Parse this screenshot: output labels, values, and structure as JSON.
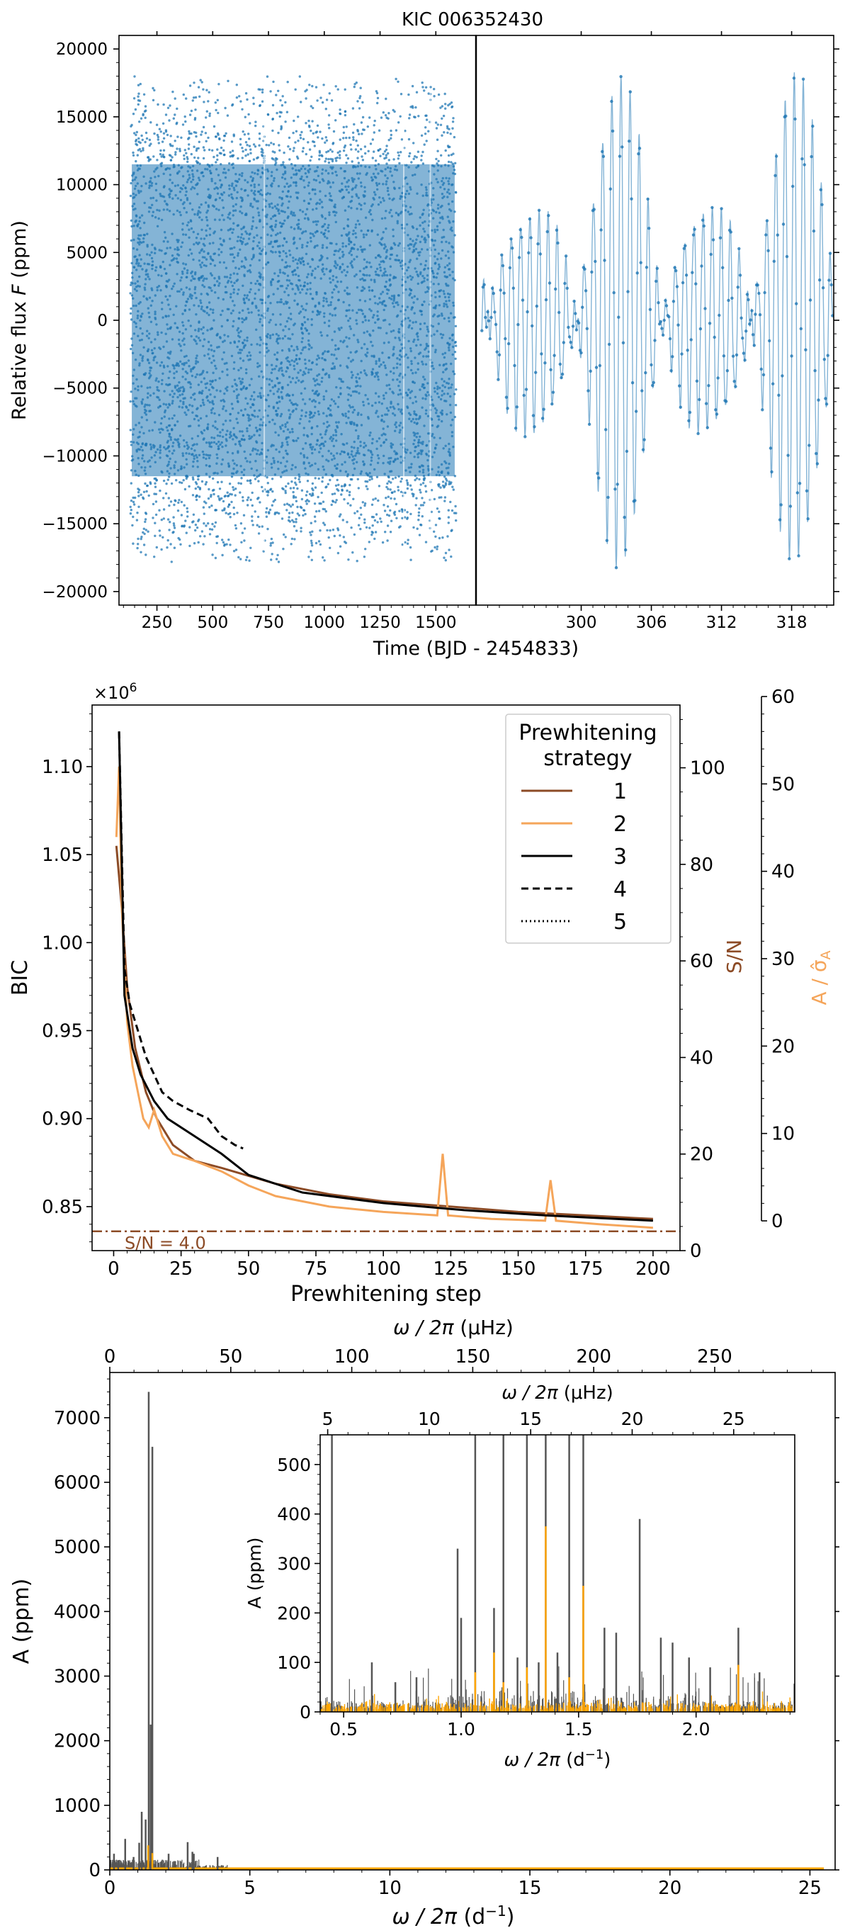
{
  "chart_data": [
    {
      "type": "scatter",
      "title": "KIC 006352430",
      "xlabel": "Time (BJD - 2454833)",
      "ylabel_prefix": "Relative flux",
      "ylabel_var": "F",
      "ylabel_unit": "(ppm)",
      "ylim": [
        -21000,
        21000
      ],
      "yticks": [
        -20000,
        -15000,
        -10000,
        -5000,
        0,
        5000,
        10000,
        15000,
        20000
      ],
      "left_panel": {
        "xlim": [
          80,
          1680
        ],
        "data_range": [
          131,
          1591
        ],
        "xticks": [
          250,
          500,
          750,
          1000,
          1250,
          1500
        ]
      },
      "right_panel": {
        "xlim": [
          291,
          321.6
        ],
        "xticks": [
          300,
          306,
          312,
          318
        ],
        "signal": {
          "t0": 291.5,
          "t1": 321.5,
          "carrier_period_d": 0.78,
          "beat_period_d": 7.5,
          "peak_amplitude": 18000
        }
      },
      "color": "#1f77b4"
    },
    {
      "type": "line",
      "xlabel": "Prewhitening step",
      "ylabel": "BIC",
      "offset_text": "×10",
      "offset_exp": "6",
      "xlim": [
        -8,
        210
      ],
      "xticks": [
        0,
        25,
        50,
        75,
        100,
        125,
        150,
        175,
        200
      ],
      "ylim": [
        0.825,
        1.135
      ],
      "yticks": [
        0.85,
        0.9,
        0.95,
        1.0,
        1.05,
        1.1
      ],
      "ytick_labels": [
        "0.85",
        "0.90",
        "0.95",
        "1.00",
        "1.05",
        "1.10"
      ],
      "sn_axis": {
        "label": "S/N",
        "ylim": [
          0,
          113
        ],
        "ticks": [
          0,
          20,
          40,
          60,
          80,
          100
        ],
        "color": "#8c4b26"
      },
      "amp_axis": {
        "label": "A / σ̂",
        "label_sub": "A",
        "ylim": [
          0,
          60
        ],
        "ticks": [
          0,
          10,
          20,
          30,
          40,
          50,
          60
        ],
        "color": "#f5a55a"
      },
      "legend": {
        "title_line1": "Prewhitening",
        "title_line2": "strategy",
        "position": "top-right",
        "entries": [
          "1",
          "2",
          "3",
          "4",
          "5"
        ]
      },
      "threshold": {
        "sn": 4.0,
        "label": "S/N = 4.0"
      },
      "series": [
        {
          "name": "1",
          "color": "#8c4b26",
          "style": "solid",
          "x": [
            1,
            3,
            5,
            8,
            12,
            16,
            22,
            30,
            40,
            60,
            80,
            100,
            125,
            150,
            175,
            200
          ],
          "y": [
            1.055,
            1.02,
            0.975,
            0.94,
            0.915,
            0.9,
            0.885,
            0.876,
            0.872,
            0.863,
            0.857,
            0.853,
            0.85,
            0.847,
            0.845,
            0.843
          ]
        },
        {
          "name": "2",
          "color": "#f5a55a",
          "style": "solid",
          "x": [
            1,
            2,
            3,
            5,
            7,
            9,
            11,
            13,
            15,
            18,
            22,
            26,
            30,
            35,
            40,
            50,
            60,
            80,
            100,
            120,
            122,
            124,
            140,
            160,
            162,
            164,
            180,
            200
          ],
          "y": [
            1.06,
            1.1,
            1.02,
            0.955,
            0.93,
            0.915,
            0.9,
            0.895,
            0.905,
            0.89,
            0.88,
            0.878,
            0.876,
            0.873,
            0.87,
            0.862,
            0.856,
            0.85,
            0.847,
            0.845,
            0.88,
            0.845,
            0.843,
            0.842,
            0.865,
            0.842,
            0.84,
            0.838
          ]
        },
        {
          "name": "3",
          "color": "#000000",
          "style": "solid",
          "x": [
            2,
            4,
            7,
            10,
            15,
            20,
            30,
            40,
            50,
            70,
            100,
            130,
            160,
            200
          ],
          "y": [
            1.12,
            0.97,
            0.94,
            0.925,
            0.91,
            0.9,
            0.89,
            0.88,
            0.868,
            0.858,
            0.852,
            0.848,
            0.845,
            0.842
          ]
        },
        {
          "name": "4",
          "color": "#000000",
          "style": "dashed",
          "x": [
            2,
            4,
            6,
            8,
            12,
            15,
            18,
            22,
            28,
            35,
            40,
            45,
            48
          ],
          "y": [
            1.12,
            0.985,
            0.965,
            0.955,
            0.935,
            0.925,
            0.915,
            0.91,
            0.905,
            0.9,
            0.89,
            0.885,
            0.883
          ]
        },
        {
          "name": "5",
          "color": "#000000",
          "style": "dotted",
          "x": [],
          "y": []
        }
      ]
    },
    {
      "type": "bar",
      "xlabel_main": "ω / 2π",
      "xlabel_unit": "(d",
      "xlabel_exp": "−1",
      "top_xlabel_main": "ω / 2π",
      "top_xlabel_unit": "(μHz)",
      "ylabel": "A (ppm)",
      "xlim": [
        0,
        25.9
      ],
      "xticks": [
        0,
        5,
        10,
        15,
        20,
        25
      ],
      "top_xticks": [
        0,
        50,
        100,
        150,
        200,
        250
      ],
      "ylim": [
        0,
        7700
      ],
      "yticks": [
        0,
        1000,
        2000,
        3000,
        4000,
        5000,
        6000,
        7000
      ],
      "peaks": [
        {
          "f": 1.39,
          "a": 7400
        },
        {
          "f": 1.52,
          "a": 6550
        },
        {
          "f": 1.46,
          "a": 2250
        },
        {
          "f": 1.14,
          "a": 900
        },
        {
          "f": 1.28,
          "a": 780
        },
        {
          "f": 1.05,
          "a": 420
        },
        {
          "f": 0.55,
          "a": 480
        },
        {
          "f": 0.85,
          "a": 200
        },
        {
          "f": 2.1,
          "a": 250
        },
        {
          "f": 2.78,
          "a": 430
        },
        {
          "f": 2.95,
          "a": 280
        },
        {
          "f": 3.0,
          "a": 250
        },
        {
          "f": 3.85,
          "a": 200
        },
        {
          "f": 0.15,
          "a": 250
        },
        {
          "f": 0.3,
          "a": 150
        }
      ],
      "residual_peaks": [
        {
          "f": 1.37,
          "a": 380
        },
        {
          "f": 1.52,
          "a": 260
        }
      ],
      "colors": {
        "data": "#555555",
        "residual": "#ffa500"
      },
      "inset": {
        "xlim": [
          0.4,
          2.42
        ],
        "xticks": [
          0.5,
          1.0,
          1.5,
          2.0
        ],
        "xtick_labels": [
          "0.5",
          "1.0",
          "1.5",
          "2.0"
        ],
        "top_xticks": [
          5,
          10,
          15,
          20,
          25
        ],
        "ylim": [
          0,
          560
        ],
        "yticks": [
          0,
          100,
          200,
          300,
          400,
          500
        ],
        "ylabel": "A (ppm)",
        "xlabel_main": "ω / 2π",
        "xlabel_unit": "(d",
        "xlabel_exp": "−1",
        "top_xlabel_main": "ω / 2π",
        "top_xlabel_unit": "(μHz)",
        "peaks": [
          {
            "f": 0.45,
            "a": 560
          },
          {
            "f": 1.06,
            "a": 560
          },
          {
            "f": 1.18,
            "a": 560
          },
          {
            "f": 1.28,
            "a": 560
          },
          {
            "f": 1.36,
            "a": 560
          },
          {
            "f": 1.46,
            "a": 560
          },
          {
            "f": 1.52,
            "a": 560
          },
          {
            "f": 0.985,
            "a": 330
          },
          {
            "f": 1.76,
            "a": 390
          },
          {
            "f": 1.14,
            "a": 210
          },
          {
            "f": 1.0,
            "a": 190
          },
          {
            "f": 1.61,
            "a": 170
          },
          {
            "f": 1.66,
            "a": 160
          },
          {
            "f": 1.85,
            "a": 150
          },
          {
            "f": 1.9,
            "a": 140
          },
          {
            "f": 2.18,
            "a": 170
          },
          {
            "f": 2.27,
            "a": 80
          },
          {
            "f": 0.62,
            "a": 100
          },
          {
            "f": 0.72,
            "a": 60
          },
          {
            "f": 0.81,
            "a": 70
          },
          {
            "f": 1.24,
            "a": 110
          },
          {
            "f": 1.33,
            "a": 100
          },
          {
            "f": 1.41,
            "a": 120
          },
          {
            "f": 1.97,
            "a": 110
          },
          {
            "f": 2.06,
            "a": 90
          }
        ],
        "residual_peaks": [
          {
            "f": 1.36,
            "a": 375
          },
          {
            "f": 1.52,
            "a": 255
          },
          {
            "f": 1.14,
            "a": 120
          },
          {
            "f": 1.28,
            "a": 90
          },
          {
            "f": 1.46,
            "a": 70
          },
          {
            "f": 1.06,
            "a": 80
          },
          {
            "f": 2.18,
            "a": 95
          },
          {
            "f": 1.18,
            "a": 60
          }
        ]
      }
    }
  ]
}
